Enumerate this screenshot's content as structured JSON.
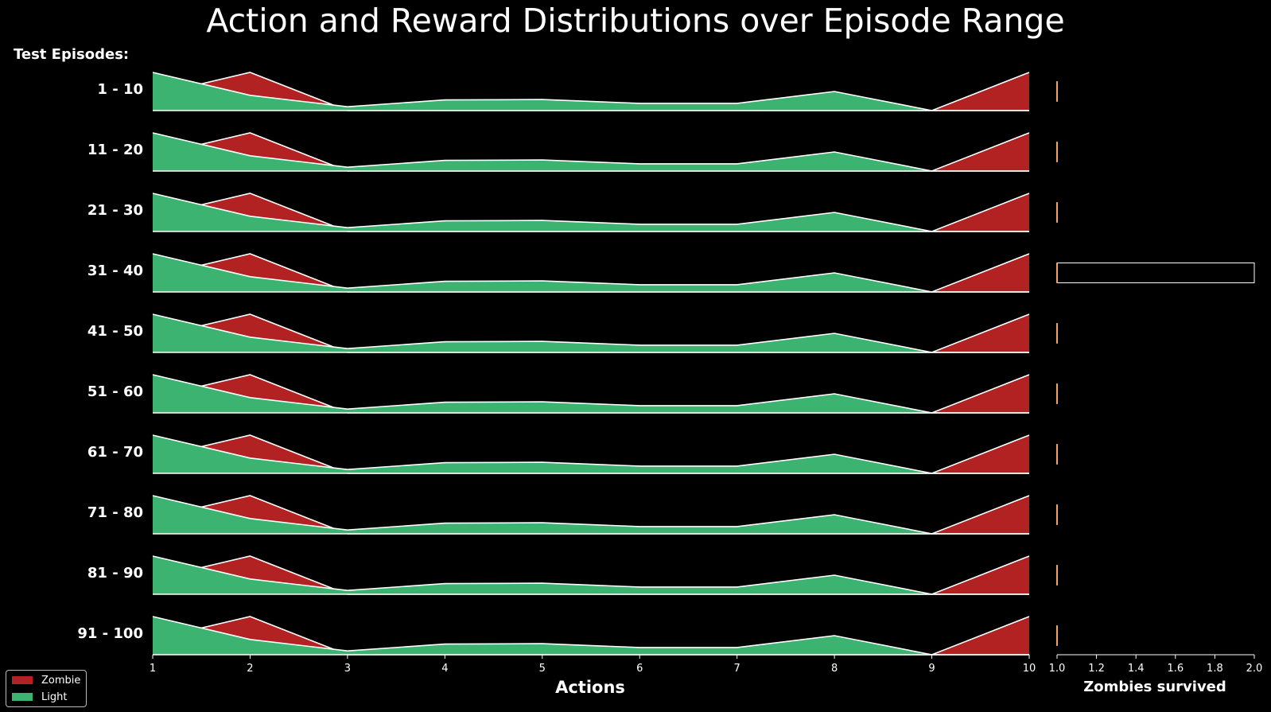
{
  "chart_data": {
    "type": "area",
    "title": "Action and Reward Distributions over Episode Range",
    "row_heading": "Test Episodes:",
    "xlabel": "Actions",
    "x": [
      1,
      2,
      3,
      4,
      5,
      6,
      7,
      8,
      9,
      10
    ],
    "x_ticks": [
      "1",
      "2",
      "3",
      "4",
      "5",
      "6",
      "7",
      "8",
      "9",
      "10"
    ],
    "rows": [
      {
        "label": "1 - 10"
      },
      {
        "label": "11 - 20"
      },
      {
        "label": "21 - 30"
      },
      {
        "label": "31 - 40"
      },
      {
        "label": "41 - 50"
      },
      {
        "label": "51 - 60"
      },
      {
        "label": "61 - 70"
      },
      {
        "label": "71 - 80"
      },
      {
        "label": "81 - 90"
      },
      {
        "label": "91 - 100"
      }
    ],
    "series": [
      {
        "name": "Zombie",
        "color": "#b22222",
        "values": [
          0.4,
          1.0,
          0.0,
          0.0,
          0.0,
          0.0,
          0.0,
          0.0,
          0.0,
          1.0
        ]
      },
      {
        "name": "Light",
        "color": "#3cb371",
        "values": [
          1.0,
          0.4,
          0.1,
          0.28,
          0.29,
          0.19,
          0.19,
          0.5,
          0.0,
          0.0
        ]
      }
    ],
    "ylim": [
      0,
      1
    ],
    "reward_panel": {
      "type": "box",
      "xlabel": "Zombies survived",
      "xlim": [
        1.0,
        2.0
      ],
      "x_ticks": [
        "1.0",
        "1.2",
        "1.4",
        "1.6",
        "1.8",
        "2.0"
      ],
      "box_color": "#f4a460",
      "rows": [
        {
          "min": 1.0,
          "q1": 1.0,
          "median": 1.0,
          "q3": 1.0,
          "max": 1.0
        },
        {
          "min": 1.0,
          "q1": 1.0,
          "median": 1.0,
          "q3": 1.0,
          "max": 1.0
        },
        {
          "min": 1.0,
          "q1": 1.0,
          "median": 1.0,
          "q3": 1.0,
          "max": 1.0
        },
        {
          "min": 1.0,
          "q1": 1.0,
          "median": 1.0,
          "q3": 2.0,
          "max": 2.0
        },
        {
          "min": 1.0,
          "q1": 1.0,
          "median": 1.0,
          "q3": 1.0,
          "max": 1.0
        },
        {
          "min": 1.0,
          "q1": 1.0,
          "median": 1.0,
          "q3": 1.0,
          "max": 1.0
        },
        {
          "min": 1.0,
          "q1": 1.0,
          "median": 1.0,
          "q3": 1.0,
          "max": 1.0
        },
        {
          "min": 1.0,
          "q1": 1.0,
          "median": 1.0,
          "q3": 1.0,
          "max": 1.0
        },
        {
          "min": 1.0,
          "q1": 1.0,
          "median": 1.0,
          "q3": 1.0,
          "max": 1.0
        },
        {
          "min": 1.0,
          "q1": 1.0,
          "median": 1.0,
          "q3": 1.0,
          "max": 1.0
        }
      ]
    },
    "legend": {
      "position": "bottom-left",
      "entries": [
        "Zombie",
        "Light"
      ]
    }
  }
}
